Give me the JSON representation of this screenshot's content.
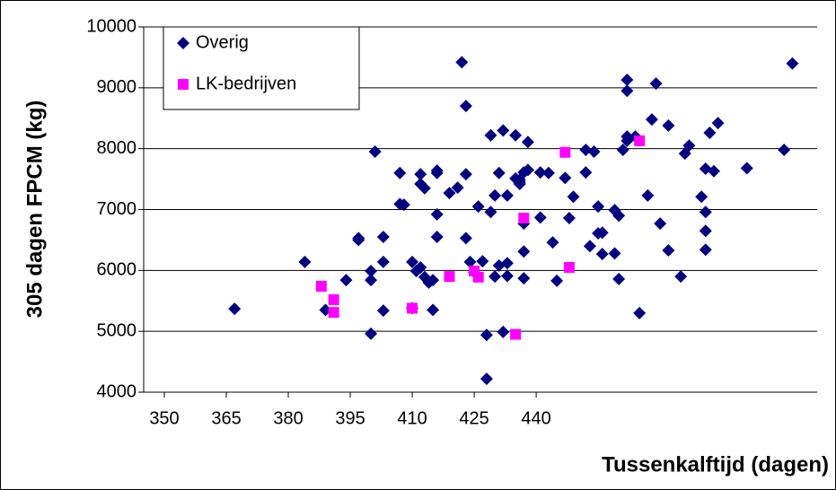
{
  "chart_data": {
    "type": "scatter",
    "x_label": "Tussenkalftijd (dagen)",
    "y_label": "305 dagen FPCM (kg)",
    "xlim": [
      345,
      508
    ],
    "xticks": [
      350,
      365,
      380,
      395,
      410,
      425,
      440
    ],
    "ylim": [
      4000,
      10000
    ],
    "yticks": [
      4000,
      5000,
      6000,
      7000,
      8000,
      9000,
      10000
    ],
    "grid": true,
    "legend": "upper left",
    "series": [
      {
        "name": "Overig",
        "color": "#000080",
        "marker": "diamond",
        "x": [
          367,
          384,
          389,
          401,
          394,
          400,
          400,
          397,
          397,
          400,
          403,
          403,
          403,
          407,
          407,
          408,
          410,
          412,
          413,
          412,
          415,
          416,
          415,
          416,
          410,
          411,
          412,
          413,
          414,
          416,
          416,
          419,
          421,
          423,
          423,
          424,
          425,
          426,
          428,
          428,
          427,
          430,
          431,
          422,
          423,
          429,
          429,
          431,
          430,
          432,
          433,
          433,
          433,
          432,
          435,
          435,
          436,
          436,
          437,
          437,
          438,
          438,
          437,
          437,
          436,
          441,
          441,
          443,
          444,
          445,
          447,
          448,
          449,
          452,
          452,
          454,
          455,
          453,
          455,
          456,
          456,
          459,
          459,
          460,
          460,
          461,
          462,
          462,
          462,
          462,
          464,
          465,
          467,
          468,
          469,
          470,
          472,
          472,
          475,
          476,
          477,
          481,
          481,
          481,
          481,
          482,
          483,
          484,
          480,
          491,
          500,
          502
        ],
        "values": [
          5370,
          6140,
          5350,
          7950,
          5840,
          4960,
          5840,
          6530,
          6500,
          5990,
          6550,
          5340,
          6140,
          7600,
          7090,
          7080,
          6140,
          7420,
          7350,
          7580,
          5840,
          6550,
          5350,
          6920,
          5380,
          5990,
          6050,
          5890,
          5800,
          7600,
          7640,
          7270,
          7360,
          7580,
          6530,
          6140,
          5970,
          7050,
          4940,
          4220,
          6150,
          7230,
          7600,
          9420,
          8700,
          8220,
          6960,
          6080,
          5900,
          4990,
          7230,
          5910,
          6120,
          8300,
          7510,
          8220,
          7420,
          7490,
          7610,
          6770,
          7650,
          8110,
          5870,
          6310,
          7450,
          7610,
          6870,
          7600,
          6460,
          5830,
          7520,
          6860,
          7210,
          7980,
          7610,
          7950,
          7050,
          6400,
          6610,
          6620,
          6270,
          6280,
          6990,
          5860,
          6900,
          7980,
          8130,
          8200,
          9130,
          8950,
          8200,
          5300,
          7230,
          8480,
          9070,
          6770,
          6330,
          8380,
          5900,
          7920,
          8050,
          6960,
          6650,
          6340,
          7670,
          8260,
          7630,
          8420,
          7210,
          7680,
          7980,
          9400
        ]
      },
      {
        "name": "LK-bedrijven",
        "color": "#ff00ff",
        "marker": "square",
        "x": [
          388,
          391,
          391,
          410,
          419,
          425,
          426,
          435,
          437,
          448,
          447,
          465
        ],
        "values": [
          5740,
          5520,
          5310,
          5380,
          5900,
          5990,
          5890,
          4950,
          6860,
          6050,
          7940,
          8130
        ]
      }
    ]
  }
}
